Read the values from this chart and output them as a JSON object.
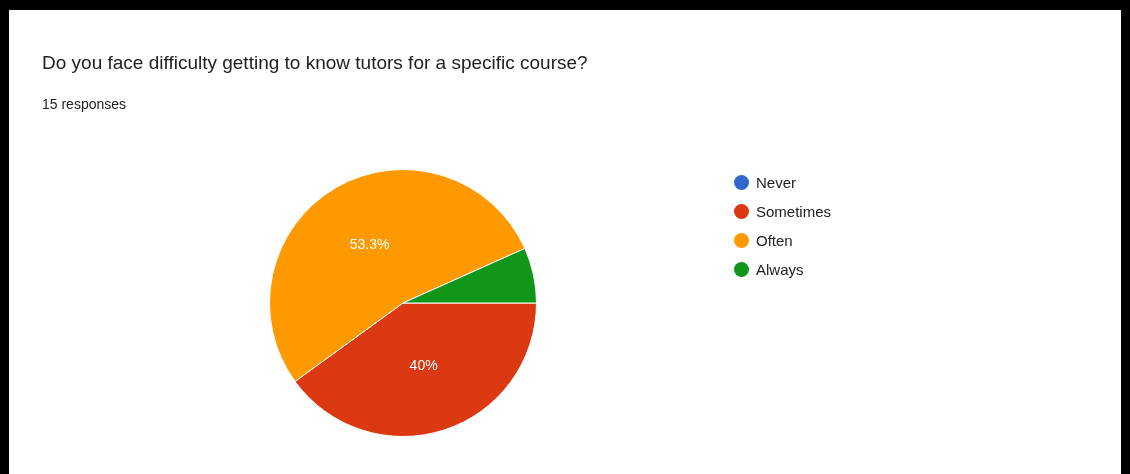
{
  "chart_data": {
    "type": "pie",
    "title": "Do you face difficulty getting to know tutors for a specific course?",
    "subtitle": "15 responses",
    "categories": [
      "Never",
      "Sometimes",
      "Often",
      "Always"
    ],
    "values": [
      0,
      40,
      53.3,
      6.7
    ],
    "colors": [
      "#3366cc",
      "#dc3912",
      "#ff9900",
      "#109618"
    ],
    "value_labels": [
      null,
      "40%",
      "53.3%",
      null
    ],
    "legend": "right"
  }
}
